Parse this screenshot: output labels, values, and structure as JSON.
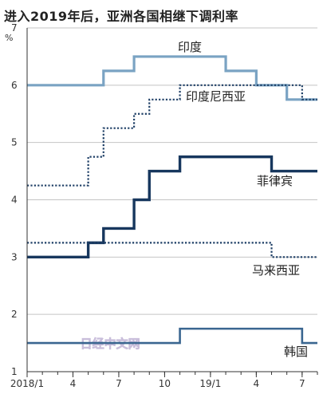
{
  "chart_data": {
    "type": "line",
    "title": "进入2019年后，亚洲各国相继下调利率",
    "ylabel": "%",
    "ylim": [
      1,
      7
    ],
    "yticks": [
      1,
      2,
      3,
      4,
      5,
      6,
      7
    ],
    "xlim": [
      "2018-01",
      "2019-08"
    ],
    "xticks": [
      {
        "date": "2018-01",
        "label": "2018/1"
      },
      {
        "date": "2018-04",
        "label": "4"
      },
      {
        "date": "2018-07",
        "label": "7"
      },
      {
        "date": "2018-10",
        "label": "10"
      },
      {
        "date": "2019-01",
        "label": "19/1"
      },
      {
        "date": "2019-04",
        "label": "4"
      },
      {
        "date": "2019-07",
        "label": "7"
      }
    ],
    "grid": true,
    "watermark": "日经中文网",
    "series": [
      {
        "name": "印度",
        "color": "#7aa3c3",
        "dash": "solid",
        "points": [
          [
            "2018-01",
            6.0
          ],
          [
            "2018-06",
            6.25
          ],
          [
            "2018-08",
            6.5
          ],
          [
            "2019-02",
            6.25
          ],
          [
            "2019-04",
            6.0
          ],
          [
            "2019-06",
            5.75
          ],
          [
            "2019-08",
            5.75
          ]
        ]
      },
      {
        "name": "印度尼西亚",
        "color": "#1e3f66",
        "dash": "dotted",
        "points": [
          [
            "2018-01",
            4.25
          ],
          [
            "2018-05",
            4.75
          ],
          [
            "2018-06",
            5.25
          ],
          [
            "2018-08",
            5.5
          ],
          [
            "2018-09",
            5.75
          ],
          [
            "2018-11",
            6.0
          ],
          [
            "2019-07",
            5.75
          ],
          [
            "2019-08",
            5.75
          ]
        ]
      },
      {
        "name": "菲律宾",
        "color": "#17375e",
        "dash": "solid",
        "points": [
          [
            "2018-01",
            3.0
          ],
          [
            "2018-05",
            3.25
          ],
          [
            "2018-06",
            3.5
          ],
          [
            "2018-08",
            4.0
          ],
          [
            "2018-09",
            4.5
          ],
          [
            "2018-11",
            4.75
          ],
          [
            "2019-05",
            4.5
          ],
          [
            "2019-08",
            4.5
          ]
        ]
      },
      {
        "name": "马来西亚",
        "color": "#1e3f66",
        "dash": "dotted",
        "points": [
          [
            "2018-01",
            3.25
          ],
          [
            "2019-05",
            3.0
          ],
          [
            "2019-08",
            3.0
          ]
        ]
      },
      {
        "name": "韩国",
        "color": "#3a6690",
        "dash": "solid",
        "points": [
          [
            "2018-01",
            1.5
          ],
          [
            "2018-11",
            1.75
          ],
          [
            "2019-07",
            1.5
          ],
          [
            "2019-08",
            1.5
          ]
        ]
      }
    ]
  }
}
